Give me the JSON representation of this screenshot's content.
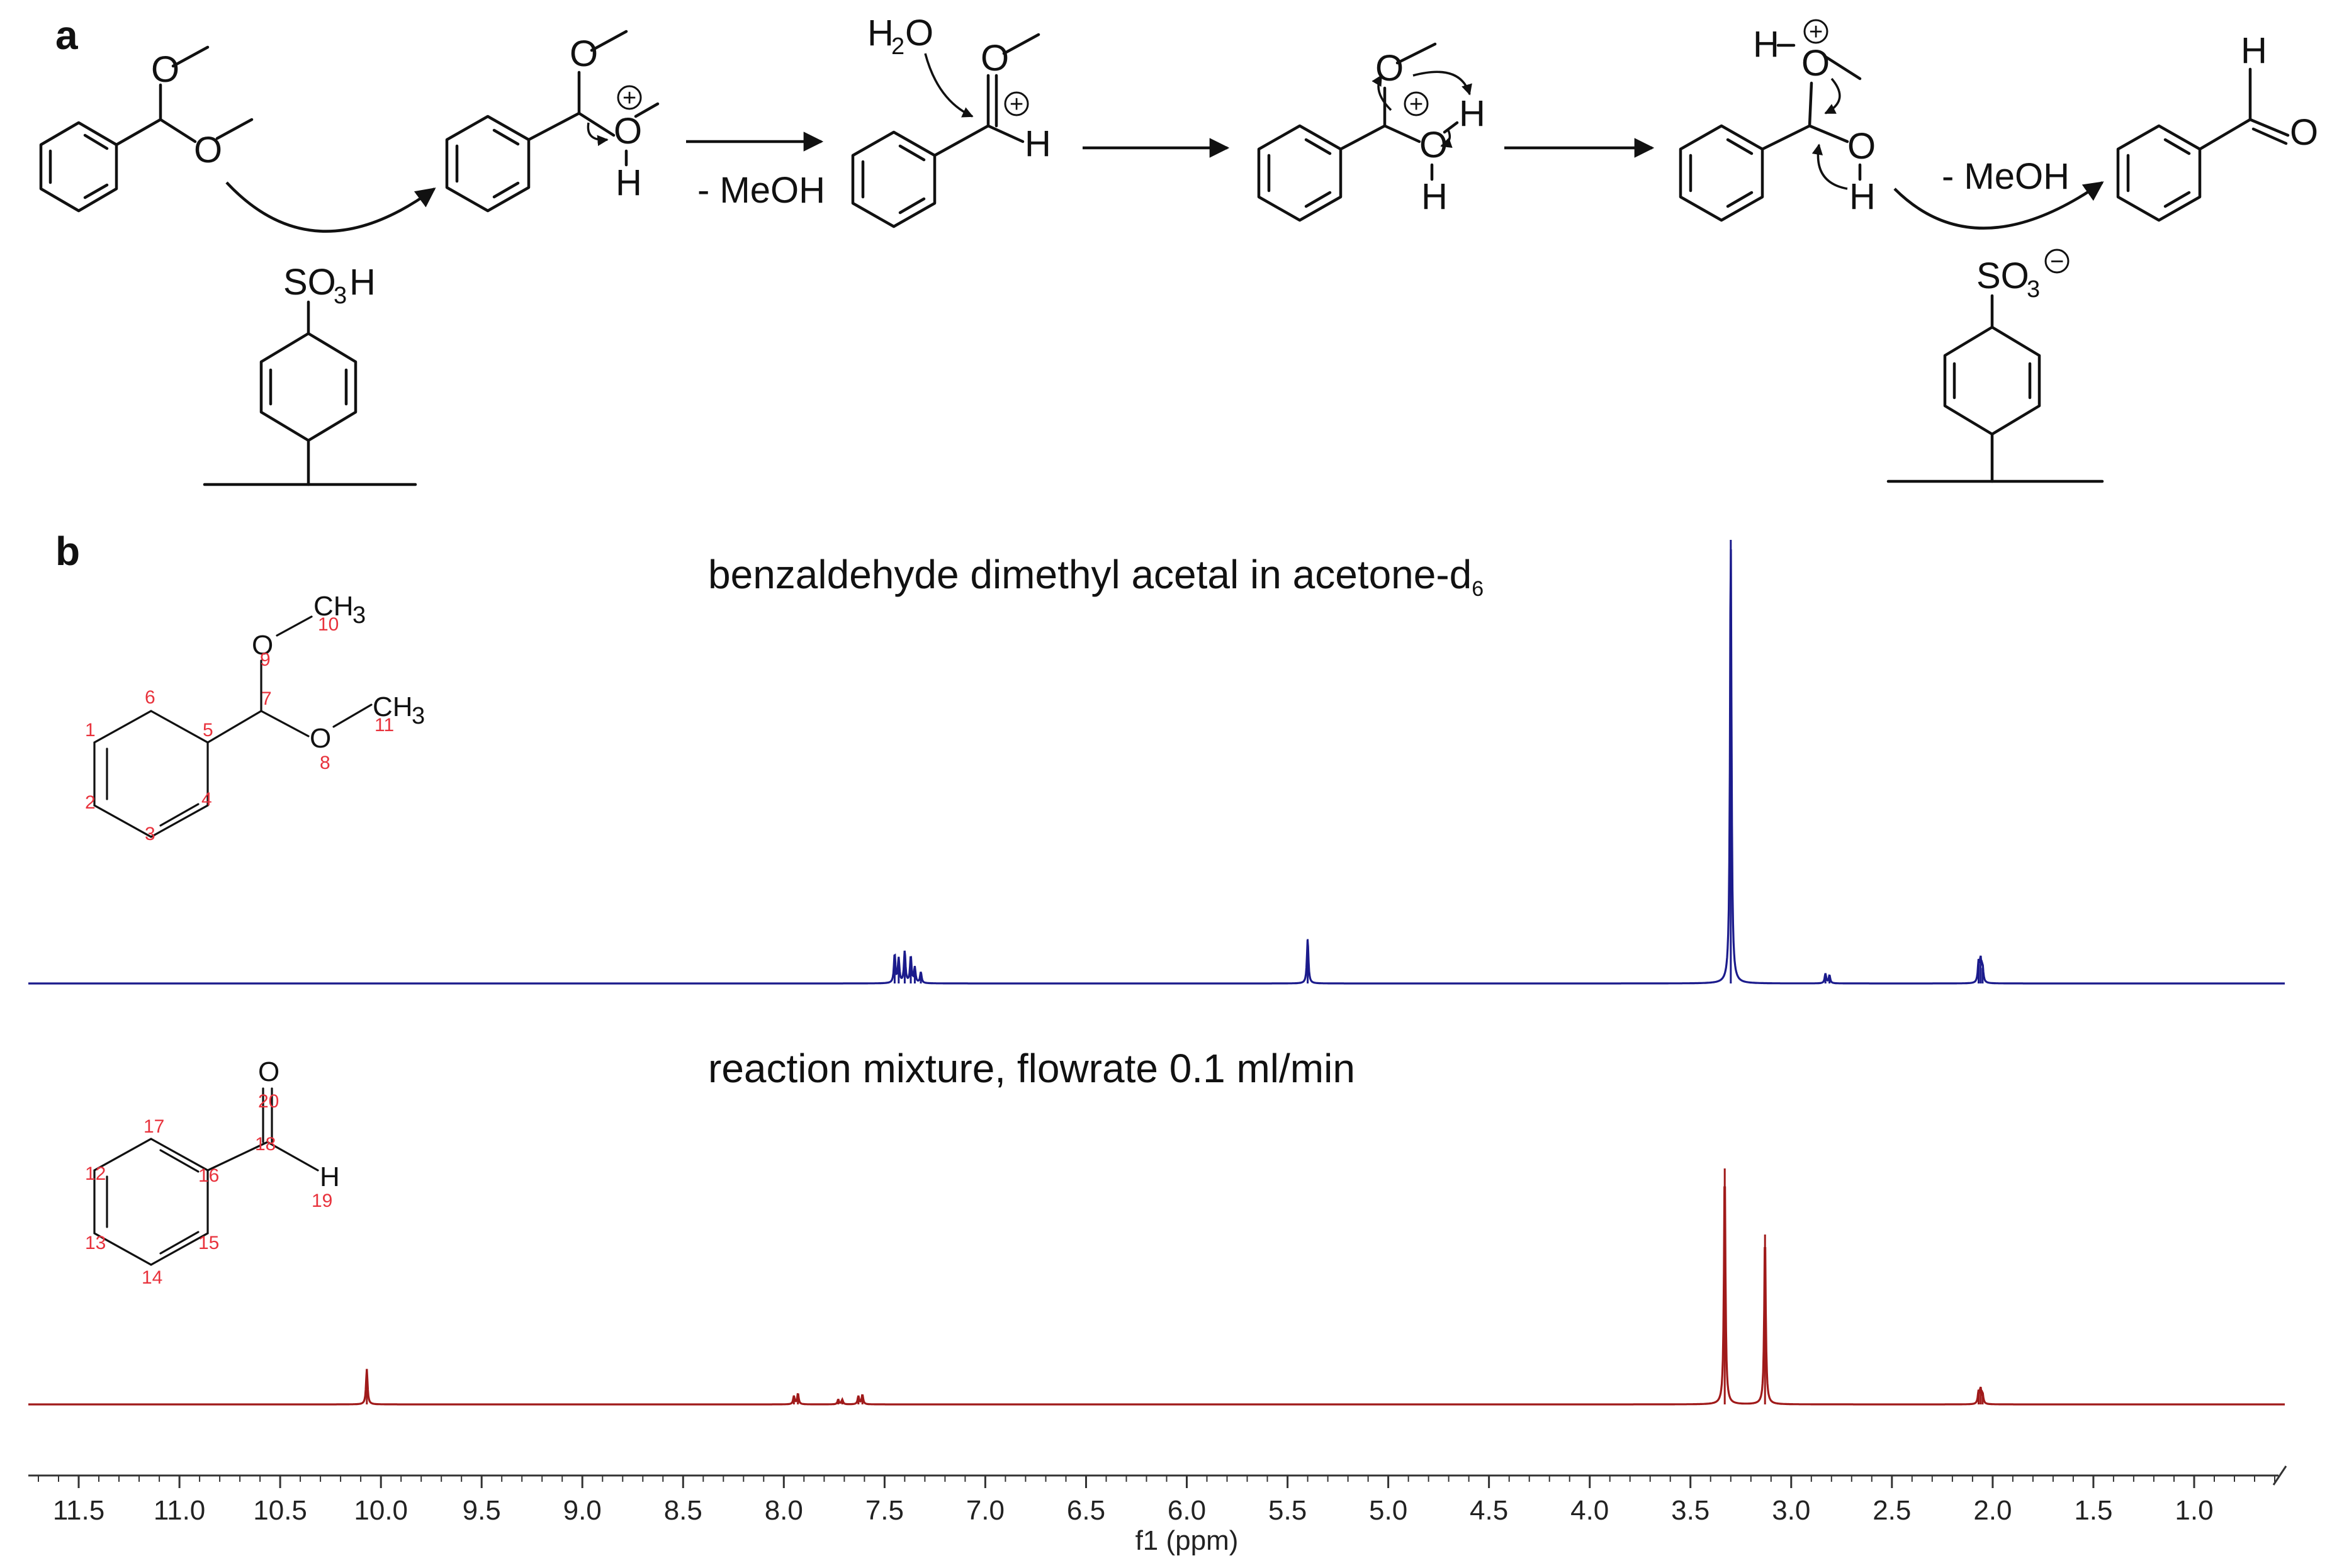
{
  "panel_a": {
    "label": "a",
    "atoms": {
      "O": "O",
      "H": "H",
      "H2O_H": "H",
      "H2O_sub": "2",
      "H2O_O": "O",
      "SO": "SO",
      "SO_sub": "3",
      "SO_H": "H",
      "plus": "+",
      "minus": "−"
    },
    "step_labels": [
      "- MeOH",
      "- MeOH"
    ]
  },
  "panel_b": {
    "label": "b",
    "atom_labels": {
      "O": "O",
      "CH": "CH",
      "sub3": "3",
      "H": "H"
    },
    "acetal_numbers": [
      "1",
      "2",
      "3",
      "4",
      "5",
      "6",
      "7",
      "8",
      "9",
      "10",
      "11"
    ],
    "benzaldehyde_numbers": [
      "12",
      "13",
      "14",
      "15",
      "16",
      "17",
      "18",
      "19",
      "20"
    ]
  },
  "chart_data": {
    "type": "line",
    "xlabel": "f1 (ppm)",
    "x_reversed": true,
    "xlim": [
      11.75,
      0.55
    ],
    "x_ticks": [
      "11.5",
      "11.0",
      "10.5",
      "10.0",
      "9.5",
      "9.0",
      "8.5",
      "8.0",
      "7.5",
      "7.0",
      "6.5",
      "6.0",
      "5.5",
      "5.0",
      "4.5",
      "4.0",
      "3.5",
      "3.0",
      "2.5",
      "2.0",
      "1.5",
      "1.0"
    ],
    "series": [
      {
        "title_main": "benzaldehyde dimethyl acetal in acetone-d",
        "title_sub": "6",
        "color": "#1b1b8c",
        "peaks": [
          {
            "ppm": 7.45,
            "height": 0.065
          },
          {
            "ppm": 7.43,
            "height": 0.055
          },
          {
            "ppm": 7.4,
            "height": 0.072
          },
          {
            "ppm": 7.37,
            "height": 0.06
          },
          {
            "ppm": 7.35,
            "height": 0.035
          },
          {
            "ppm": 7.32,
            "height": 0.025
          },
          {
            "ppm": 5.4,
            "height": 0.1
          },
          {
            "ppm": 3.3,
            "height": 1.0
          },
          {
            "ppm": 2.83,
            "height": 0.022
          },
          {
            "ppm": 2.81,
            "height": 0.018
          },
          {
            "ppm": 2.07,
            "height": 0.045
          },
          {
            "ppm": 2.06,
            "height": 0.05
          },
          {
            "ppm": 2.05,
            "height": 0.035
          }
        ]
      },
      {
        "title_main": "reaction mixture, flowrate 0.1 ml/min",
        "title_sub": "",
        "color": "#a01a1a",
        "peaks": [
          {
            "ppm": 10.07,
            "height": 0.15
          },
          {
            "ppm": 7.95,
            "height": 0.035
          },
          {
            "ppm": 7.93,
            "height": 0.045
          },
          {
            "ppm": 7.73,
            "height": 0.02
          },
          {
            "ppm": 7.71,
            "height": 0.02
          },
          {
            "ppm": 7.63,
            "height": 0.035
          },
          {
            "ppm": 7.61,
            "height": 0.04
          },
          {
            "ppm": 3.33,
            "height": 1.0
          },
          {
            "ppm": 3.13,
            "height": 0.72
          },
          {
            "ppm": 2.07,
            "height": 0.05
          },
          {
            "ppm": 2.06,
            "height": 0.06
          },
          {
            "ppm": 2.05,
            "height": 0.04
          }
        ]
      }
    ]
  }
}
